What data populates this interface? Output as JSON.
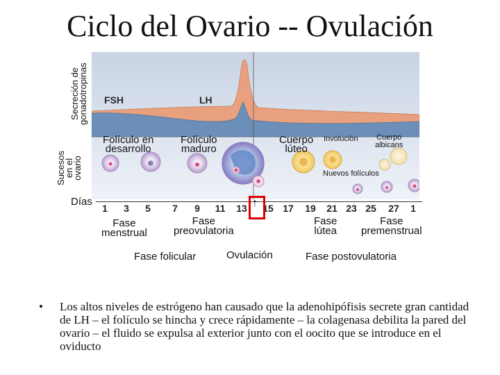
{
  "title": "Ciclo del Ovario -- Ovulación",
  "left_labels": {
    "hormones": [
      "Secreción de",
      "gonadotropinas"
    ],
    "ovary": [
      "Sucesos",
      "en el",
      "ovario"
    ],
    "days": "Días"
  },
  "hormones": {
    "fsh": "FSH",
    "lh": "LH"
  },
  "events": {
    "folliculo_desarrollo": [
      "Folículo en",
      "desarrollo"
    ],
    "folliculo_maduro": [
      "Folículo",
      "maduro"
    ],
    "cuerpo_luteo": [
      "Cuerpo",
      "lúteo"
    ],
    "involucion": "Involución",
    "cuerpo_albicans": [
      "Cuerpo",
      "albicans"
    ],
    "nuevos_foliculos": "Nuevos folículos"
  },
  "days": [
    "1",
    "3",
    "5",
    "7",
    "9",
    "11",
    "13",
    "15",
    "17",
    "19",
    "21",
    "23",
    "25",
    "27",
    "1"
  ],
  "highlighted_day": "14",
  "phases": {
    "menstrual": [
      "Fase",
      "menstrual"
    ],
    "preovulatoria": [
      "Fase",
      "preovulatoria"
    ],
    "lutea": [
      "Fase",
      "lútea"
    ],
    "premenstrual": [
      "Fase",
      "premenstrual"
    ],
    "folicular": "Fase folicular",
    "ovulacion": "Ovulación",
    "postovulatoria": "Fase postovulatoria"
  },
  "bullet": {
    "symbol": "•",
    "text": "Los altos niveles de estrógeno han causado que la adenohipófisis secrete gran cantidad de LH – el folículo se hincha y crece rápidamente – la colagenasa debilita la pared del ovario – el fluido se expulsa al exterior junto con el oocito que se introduce en el oviducto"
  },
  "colors": {
    "lh_fill": "#e8a07e",
    "fsh_fill": "#6b8fb8",
    "panel_bg_top": "#c8d3e3",
    "panel_bg_bottom": "#edf1f7",
    "highlight": "#e00000"
  }
}
